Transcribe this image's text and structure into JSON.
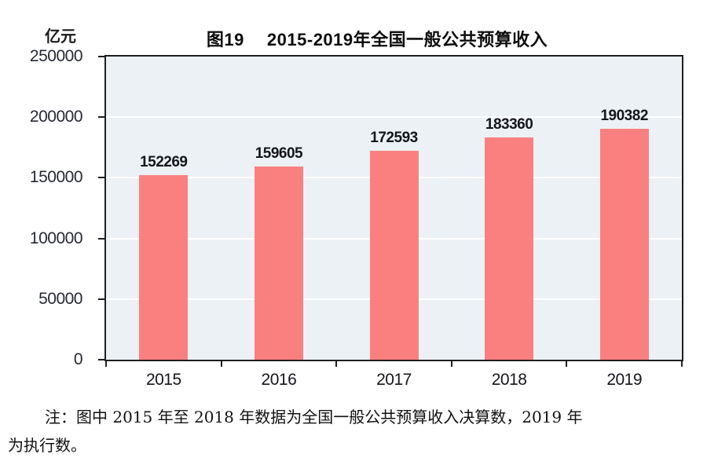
{
  "chart_data": {
    "type": "bar",
    "title": "图19　 2015-2019年全国一般公共预算收入",
    "unit_label": "亿元",
    "categories": [
      "2015",
      "2016",
      "2017",
      "2018",
      "2019"
    ],
    "values": [
      152269,
      159605,
      172593,
      183360,
      190382
    ],
    "xlabel": "",
    "ylabel": "亿元",
    "ylim": [
      0,
      250000
    ],
    "yticks": [
      0,
      50000,
      100000,
      150000,
      200000,
      250000
    ],
    "grid": true,
    "legend": false,
    "bar_color": "#fa8080",
    "plot_bg_color": "#ebf1f5",
    "axis_color": "#1f1f1f",
    "gridline_color": "#ffffff"
  },
  "note": {
    "lines": [
      "注：图中 2015 年至 2018 年数据为全国一般公共预算收入决算数，2019 年",
      "为执行数。"
    ]
  }
}
